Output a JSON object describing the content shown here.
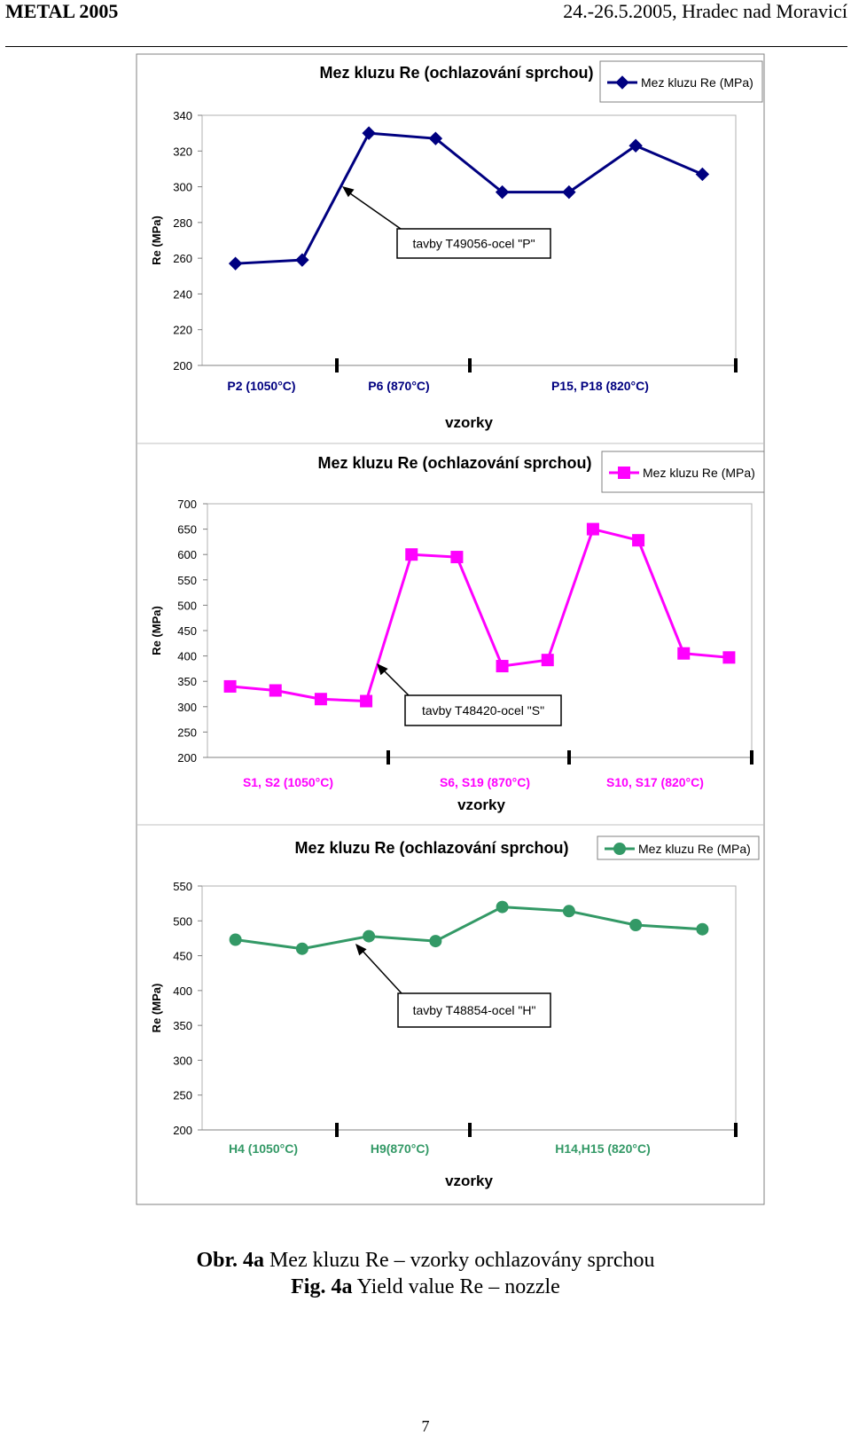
{
  "header": {
    "left": "METAL 2005",
    "right": "24.-26.5.2005, Hradec nad Moravicí"
  },
  "caption": {
    "line1_prefix": "Obr. 4a",
    "line1_text": " Mez kluzu Re – vzorky ochlazovány sprchou",
    "line2_prefix": "Fig. 4a",
    "line2_text": " Yield value Re – nozzle"
  },
  "page_number": "7",
  "chart_data": [
    {
      "type": "line",
      "title": "Mez kluzu Re (ochlazování sprchou)",
      "xlabel": "vzorky",
      "ylabel": "Re (MPa)",
      "ylim": [
        200,
        340
      ],
      "yticks": [
        200,
        220,
        240,
        260,
        280,
        300,
        320,
        340
      ],
      "series": [
        {
          "name": "Mez kluzu Re (MPa)",
          "color": "#000080",
          "marker": "diamond",
          "values": [
            257,
            259,
            330,
            327,
            297,
            297,
            323,
            307
          ]
        }
      ],
      "group_labels": [
        "P2 (1050°C)",
        "P6 (870°C)",
        "P15, P18 (820°C)"
      ],
      "annotation": "tavby T49056-ocel \"P\"",
      "legend": "top-right",
      "grid": false
    },
    {
      "type": "line",
      "title": "Mez kluzu Re (ochlazování sprchou)",
      "xlabel": "vzorky",
      "ylabel": "Re (MPa)",
      "ylim": [
        200,
        700
      ],
      "yticks": [
        200,
        250,
        300,
        350,
        400,
        450,
        500,
        550,
        600,
        650,
        700
      ],
      "series": [
        {
          "name": "Mez kluzu Re (MPa)",
          "color": "#ff00ff",
          "marker": "square",
          "values": [
            340,
            332,
            315,
            311,
            600,
            595,
            380,
            392,
            650,
            628,
            405,
            397
          ]
        }
      ],
      "group_labels": [
        "S1, S2 (1050°C)",
        "S6, S19 (870°C)",
        "S10, S17 (820°C)"
      ],
      "annotation": "tavby T48420-ocel \"S\"",
      "legend": "top-right",
      "grid": false
    },
    {
      "type": "line",
      "title": "Mez kluzu Re (ochlazování sprchou)",
      "xlabel": "vzorky",
      "ylabel": "Re (MPa)",
      "ylim": [
        200,
        550
      ],
      "yticks": [
        200,
        250,
        300,
        350,
        400,
        450,
        500,
        550
      ],
      "series": [
        {
          "name": "Mez kluzu Re (MPa)",
          "color": "#339966",
          "marker": "circle",
          "values": [
            473,
            460,
            478,
            471,
            520,
            514,
            494,
            488
          ]
        }
      ],
      "group_labels": [
        "H4 (1050°C)",
        "H9(870°C)",
        "H14,H15 (820°C)"
      ],
      "annotation": "tavby T48854-ocel \"H\"",
      "legend": "top-right",
      "grid": false
    }
  ]
}
